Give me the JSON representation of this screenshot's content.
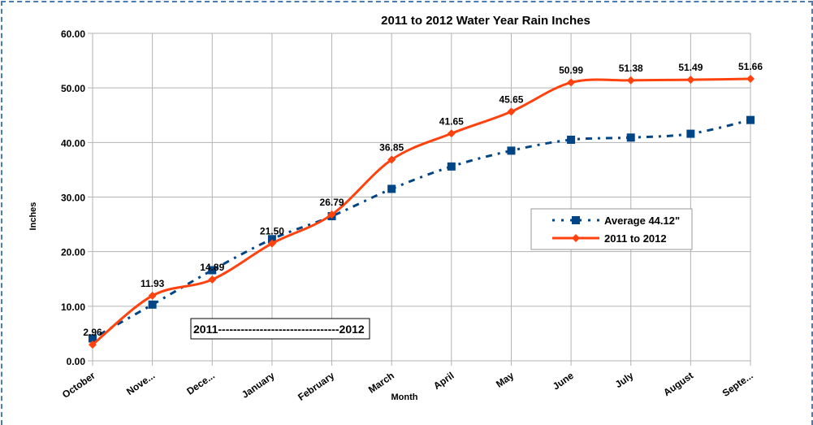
{
  "chart_data": {
    "type": "line",
    "title": "2011 to 2012 Water Year Rain Inches",
    "xlabel": "Month",
    "ylabel": "Inches",
    "categories": [
      "October",
      "Nove...",
      "Dece...",
      "January",
      "February",
      "March",
      "April",
      "May",
      "June",
      "July",
      "August",
      "Septe..."
    ],
    "ylim": [
      0,
      60
    ],
    "yticks": [
      "0.00",
      "10.00",
      "20.00",
      "30.00",
      "40.00",
      "50.00",
      "60.00"
    ],
    "grid": true,
    "legend_position": "right",
    "series": [
      {
        "name": "Average 44.12\"",
        "color": "#004586",
        "style": "dash-dot",
        "marker": "square",
        "values": [
          4.1,
          10.3,
          16.6,
          22.3,
          26.5,
          31.5,
          35.6,
          38.5,
          40.5,
          40.9,
          41.6,
          44.12
        ]
      },
      {
        "name": "2011 to 2012",
        "color": "#ff420e",
        "style": "solid",
        "marker": "diamond",
        "values": [
          2.96,
          11.93,
          14.89,
          21.5,
          26.79,
          36.85,
          41.65,
          45.65,
          50.99,
          51.38,
          51.49,
          51.66
        ],
        "data_labels": [
          "2.96",
          "11.93",
          "14.89",
          "21.50",
          "26.79",
          "36.85",
          "41.65",
          "45.65",
          "50.99",
          "51.38",
          "51.49",
          "51.66"
        ]
      }
    ],
    "annotation": "2011--------------------------------2012"
  }
}
